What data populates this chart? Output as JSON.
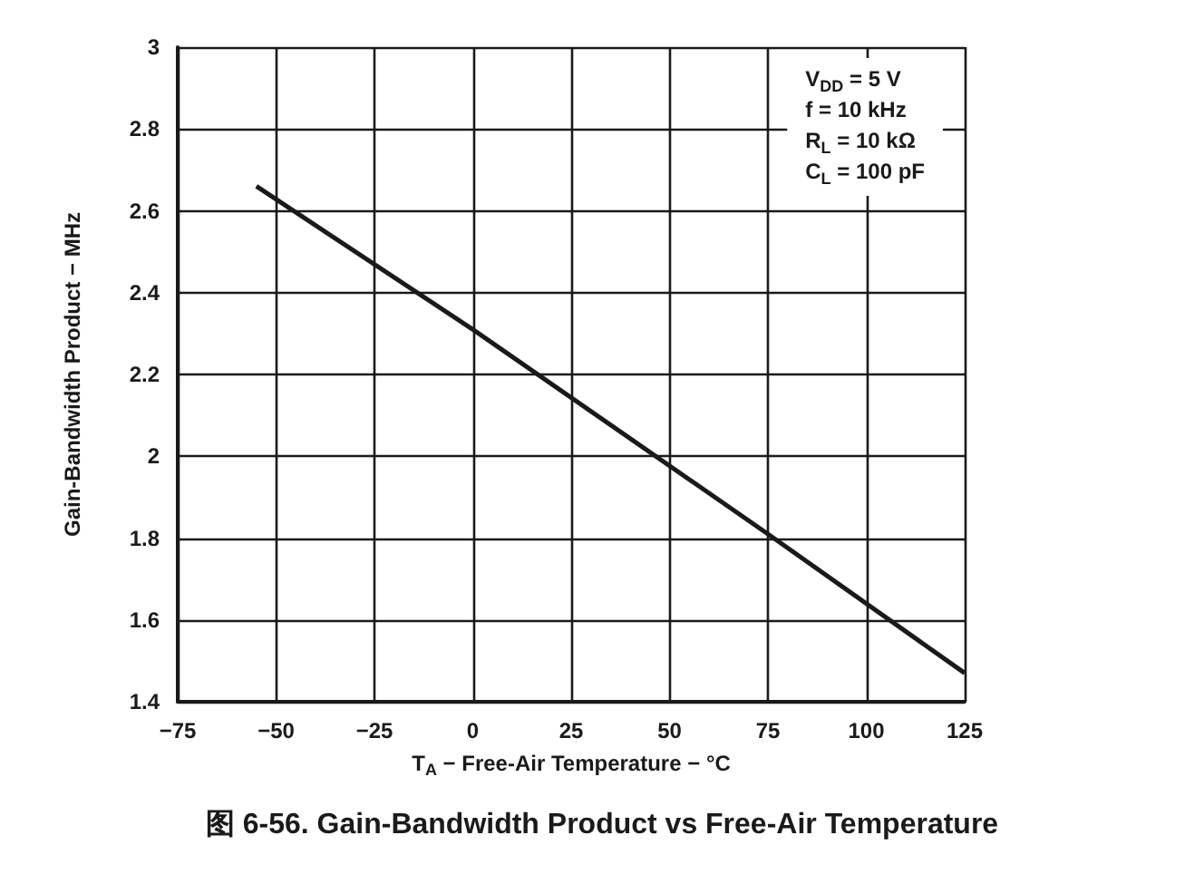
{
  "chart_data": {
    "type": "line",
    "title": "图 6-56. Gain-Bandwidth Product vs Free-Air Temperature",
    "xlabel": "T$_{A}$ − Free-Air Temperature − °C",
    "ylabel": "Gain-Bandwidth Product − MHz",
    "annotations": [
      "V$_{DD}$ = 5 V",
      "f = 10 kHz",
      "R$_{L}$ = 10 kΩ",
      "C$_{L}$ = 100 pF"
    ],
    "x": [
      -55,
      0,
      75,
      125
    ],
    "series": [
      {
        "color": "#1a1a1a",
        "values": [
          2.66,
          2.31,
          1.81,
          1.47
        ]
      }
    ],
    "xlim": [
      -75,
      125
    ],
    "xticks": [
      -75,
      -50,
      -25,
      0,
      25,
      50,
      75,
      100,
      125
    ],
    "ylim": [
      1.4,
      3
    ],
    "yticks": [
      1.4,
      1.6,
      1.8,
      2,
      2.2,
      2.4,
      2.6,
      2.8,
      3
    ],
    "grid": true,
    "marker": "none",
    "line_style": "solid"
  }
}
